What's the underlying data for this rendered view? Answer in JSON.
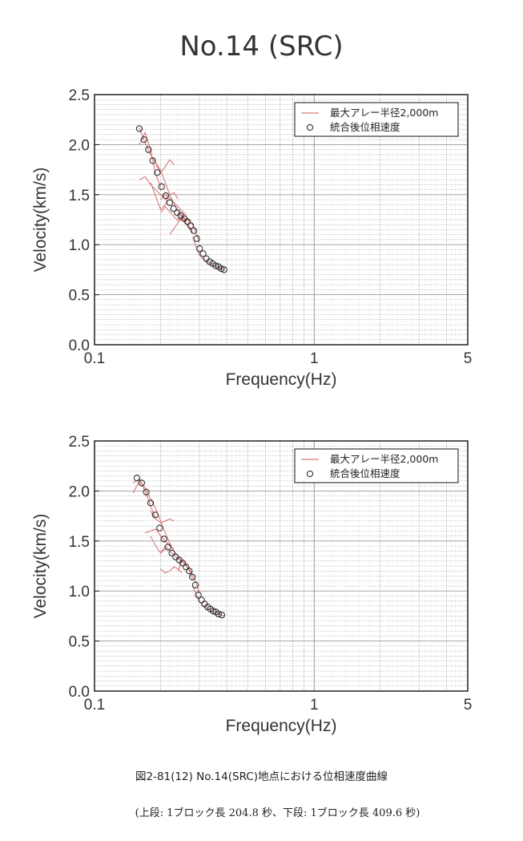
{
  "title": "No.14 (SRC)",
  "caption": "図2-81(12) No.14(SRC)地点における位相速度曲線",
  "subcaption": "(上段: 1ブロック長 204.8 秒、下段: 1ブロック長 409.6 秒)",
  "colors": {
    "red_curves": "#d97a7a",
    "markers": "#333333",
    "grid": "#9a9a9a",
    "axis": "#111111"
  },
  "chart_data": [
    {
      "type": "scatter",
      "xscale": "log",
      "xlabel": "Frequency(Hz)",
      "ylabel": "Velocity(km/s)",
      "xlim": [
        0.1,
        5
      ],
      "ylim": [
        0.0,
        2.5
      ],
      "xticks": [
        "0.1",
        "1",
        "5"
      ],
      "yticks": [
        "0.0",
        "0.5",
        "1.0",
        "1.5",
        "2.0",
        "2.5"
      ],
      "grid": true,
      "legend_position": "top-right",
      "legend": [
        "最大アレー半径2,000m",
        "統合後位相速度"
      ],
      "red_lines": [
        {
          "x": [
            0.16,
            0.17,
            0.18,
            0.19,
            0.2,
            0.21,
            0.22,
            0.23,
            0.24,
            0.25,
            0.26,
            0.27,
            0.28,
            0.29,
            0.3
          ],
          "y": [
            2.17,
            2.02,
            1.9,
            1.82,
            1.74,
            1.62,
            1.5,
            1.41,
            1.33,
            1.28,
            1.26,
            1.24,
            1.2,
            1.12,
            1.02
          ]
        },
        {
          "x": [
            0.16,
            0.17,
            0.18,
            0.19,
            0.2
          ],
          "y": [
            2.0,
            2.12,
            1.95,
            1.7,
            1.58
          ]
        },
        {
          "x": [
            0.19,
            0.2,
            0.21,
            0.22,
            0.23
          ],
          "y": [
            1.8,
            1.72,
            1.78,
            1.85,
            1.8
          ]
        },
        {
          "x": [
            0.16,
            0.17,
            0.18,
            0.19,
            0.2,
            0.21,
            0.22,
            0.23,
            0.24
          ],
          "y": [
            1.65,
            1.68,
            1.6,
            1.55,
            1.5,
            1.45,
            1.5,
            1.52,
            1.46
          ]
        },
        {
          "x": [
            0.2,
            0.21,
            0.22,
            0.23,
            0.24,
            0.25,
            0.26,
            0.27
          ],
          "y": [
            1.45,
            1.5,
            1.46,
            1.42,
            1.38,
            1.34,
            1.3,
            1.22
          ]
        },
        {
          "x": [
            0.18,
            0.19,
            0.2,
            0.21,
            0.22
          ],
          "y": [
            1.62,
            1.48,
            1.35,
            1.4,
            1.52
          ]
        },
        {
          "x": [
            0.2,
            0.21,
            0.22,
            0.23,
            0.24,
            0.25,
            0.26
          ],
          "y": [
            1.32,
            1.38,
            1.33,
            1.28,
            1.24,
            1.27,
            1.25
          ]
        },
        {
          "x": [
            0.24,
            0.25,
            0.26,
            0.27,
            0.28
          ],
          "y": [
            1.25,
            1.3,
            1.22,
            1.16,
            1.12
          ]
        },
        {
          "x": [
            0.22,
            0.23,
            0.24,
            0.25,
            0.26,
            0.27,
            0.28
          ],
          "y": [
            1.1,
            1.16,
            1.22,
            1.26,
            1.22,
            1.18,
            1.12
          ]
        },
        {
          "x": [
            0.28,
            0.29,
            0.3,
            0.31,
            0.33,
            0.35,
            0.37,
            0.39
          ],
          "y": [
            1.08,
            0.98,
            0.9,
            0.86,
            0.82,
            0.79,
            0.77,
            0.75
          ]
        }
      ],
      "points": {
        "x": [
          0.16,
          0.168,
          0.176,
          0.184,
          0.193,
          0.202,
          0.211,
          0.22,
          0.229,
          0.238,
          0.247,
          0.256,
          0.265,
          0.274,
          0.283,
          0.292,
          0.301,
          0.312,
          0.323,
          0.334,
          0.345,
          0.356,
          0.367,
          0.378,
          0.389
        ],
        "y": [
          2.16,
          2.05,
          1.95,
          1.84,
          1.72,
          1.58,
          1.49,
          1.42,
          1.36,
          1.32,
          1.29,
          1.26,
          1.23,
          1.19,
          1.14,
          1.06,
          0.96,
          0.91,
          0.86,
          0.83,
          0.81,
          0.79,
          0.78,
          0.76,
          0.75
        ]
      }
    },
    {
      "type": "scatter",
      "xscale": "log",
      "xlabel": "Frequency(Hz)",
      "ylabel": "Velocity(km/s)",
      "xlim": [
        0.1,
        5
      ],
      "ylim": [
        0.0,
        2.5
      ],
      "xticks": [
        "0.1",
        "1",
        "5"
      ],
      "yticks": [
        "0.0",
        "0.5",
        "1.0",
        "1.5",
        "2.0",
        "2.5"
      ],
      "grid": true,
      "legend_position": "top-right",
      "legend": [
        "最大アレー半径2,000m",
        "統合後位相速度"
      ],
      "red_lines": [
        {
          "x": [
            0.15,
            0.16,
            0.17,
            0.18,
            0.19,
            0.2,
            0.21,
            0.22,
            0.23,
            0.24,
            0.25,
            0.26,
            0.27,
            0.28,
            0.29,
            0.3
          ],
          "y": [
            2.08,
            2.12,
            2.03,
            1.92,
            1.82,
            1.7,
            1.58,
            1.48,
            1.4,
            1.35,
            1.3,
            1.26,
            1.22,
            1.16,
            1.08,
            0.98
          ]
        },
        {
          "x": [
            0.15,
            0.16,
            0.17,
            0.18,
            0.19
          ],
          "y": [
            1.98,
            2.1,
            2.0,
            1.85,
            1.72
          ]
        },
        {
          "x": [
            0.18,
            0.19,
            0.2,
            0.21,
            0.22,
            0.23
          ],
          "y": [
            1.8,
            1.72,
            1.68,
            1.7,
            1.72,
            1.7
          ]
        },
        {
          "x": [
            0.17,
            0.18,
            0.19,
            0.2,
            0.21,
            0.22,
            0.23
          ],
          "y": [
            1.58,
            1.6,
            1.62,
            1.55,
            1.5,
            1.45,
            1.42
          ]
        },
        {
          "x": [
            0.2,
            0.21,
            0.22,
            0.23,
            0.24,
            0.25,
            0.26,
            0.27
          ],
          "y": [
            1.38,
            1.45,
            1.4,
            1.36,
            1.32,
            1.3,
            1.26,
            1.2
          ]
        },
        {
          "x": [
            0.18,
            0.19,
            0.2,
            0.21
          ],
          "y": [
            1.55,
            1.45,
            1.38,
            1.42
          ]
        },
        {
          "x": [
            0.24,
            0.25,
            0.26,
            0.27,
            0.28
          ],
          "y": [
            1.2,
            1.3,
            1.28,
            1.2,
            1.12
          ]
        },
        {
          "x": [
            0.2,
            0.21,
            0.22,
            0.23,
            0.24,
            0.25
          ],
          "y": [
            1.22,
            1.18,
            1.2,
            1.24,
            1.22,
            1.18
          ]
        },
        {
          "x": [
            0.28,
            0.29,
            0.3,
            0.31,
            0.33,
            0.35,
            0.37,
            0.39
          ],
          "y": [
            1.05,
            0.97,
            0.9,
            0.86,
            0.82,
            0.79,
            0.77,
            0.75
          ]
        }
      ],
      "points": {
        "x": [
          0.156,
          0.164,
          0.172,
          0.18,
          0.189,
          0.198,
          0.207,
          0.216,
          0.225,
          0.234,
          0.243,
          0.252,
          0.261,
          0.27,
          0.279,
          0.288,
          0.297,
          0.307,
          0.317,
          0.327,
          0.337,
          0.347,
          0.357,
          0.367,
          0.38
        ],
        "y": [
          2.13,
          2.08,
          1.99,
          1.88,
          1.76,
          1.63,
          1.52,
          1.44,
          1.38,
          1.34,
          1.31,
          1.28,
          1.24,
          1.2,
          1.14,
          1.06,
          0.96,
          0.91,
          0.87,
          0.84,
          0.82,
          0.8,
          0.79,
          0.77,
          0.76
        ]
      }
    }
  ]
}
